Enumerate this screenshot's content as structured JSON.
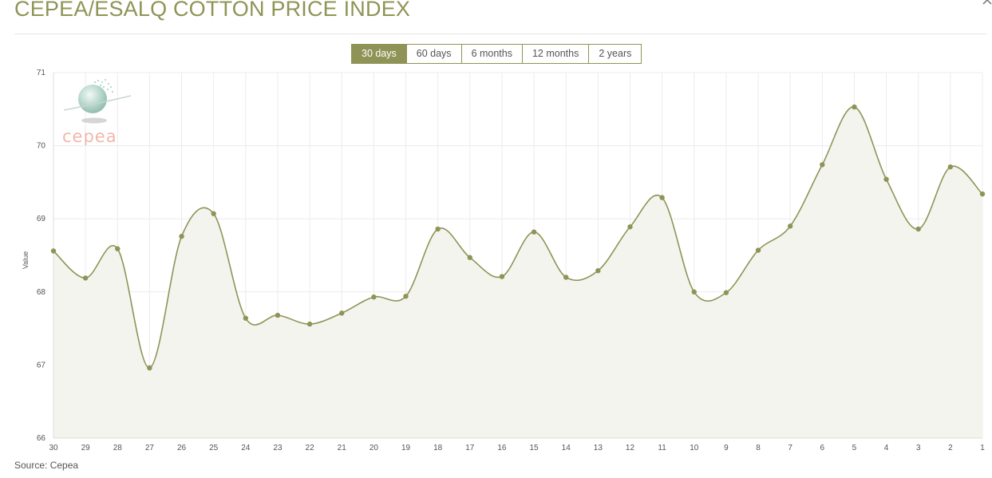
{
  "title": "CEPEA/ESALQ COTTON PRICE INDEX",
  "tabs": [
    {
      "label": "30 days",
      "active": true
    },
    {
      "label": "60 days",
      "active": false
    },
    {
      "label": "6 months",
      "active": false
    },
    {
      "label": "12 months",
      "active": false
    },
    {
      "label": "2 years",
      "active": false
    }
  ],
  "source": "Source: Cepea",
  "logo_text": "cepea",
  "colors": {
    "accent": "#8f9456",
    "area_fill": "#f4f4ef",
    "grid": "#ececec",
    "logo_text": "#f2b7aa"
  },
  "chart_data": {
    "type": "area",
    "ylabel": "Value",
    "xlabel": "",
    "ylim": [
      66,
      71
    ],
    "yticks": [
      66,
      67,
      68,
      69,
      70,
      71
    ],
    "grid": true,
    "smooth": true,
    "x": [
      "30",
      "29",
      "28",
      "27",
      "26",
      "25",
      "24",
      "23",
      "22",
      "21",
      "20",
      "19",
      "18",
      "17",
      "16",
      "15",
      "14",
      "13",
      "12",
      "11",
      "10",
      "9",
      "8",
      "7",
      "6",
      "5",
      "4",
      "3",
      "2",
      "1"
    ],
    "values": [
      68.56,
      68.19,
      68.59,
      66.96,
      68.76,
      69.07,
      67.64,
      67.68,
      67.56,
      67.71,
      67.93,
      67.94,
      68.86,
      68.47,
      68.21,
      68.82,
      68.2,
      68.29,
      68.89,
      69.29,
      68.0,
      67.99,
      68.57,
      68.9,
      69.74,
      70.53,
      69.54,
      68.86,
      69.71,
      69.34
    ]
  }
}
